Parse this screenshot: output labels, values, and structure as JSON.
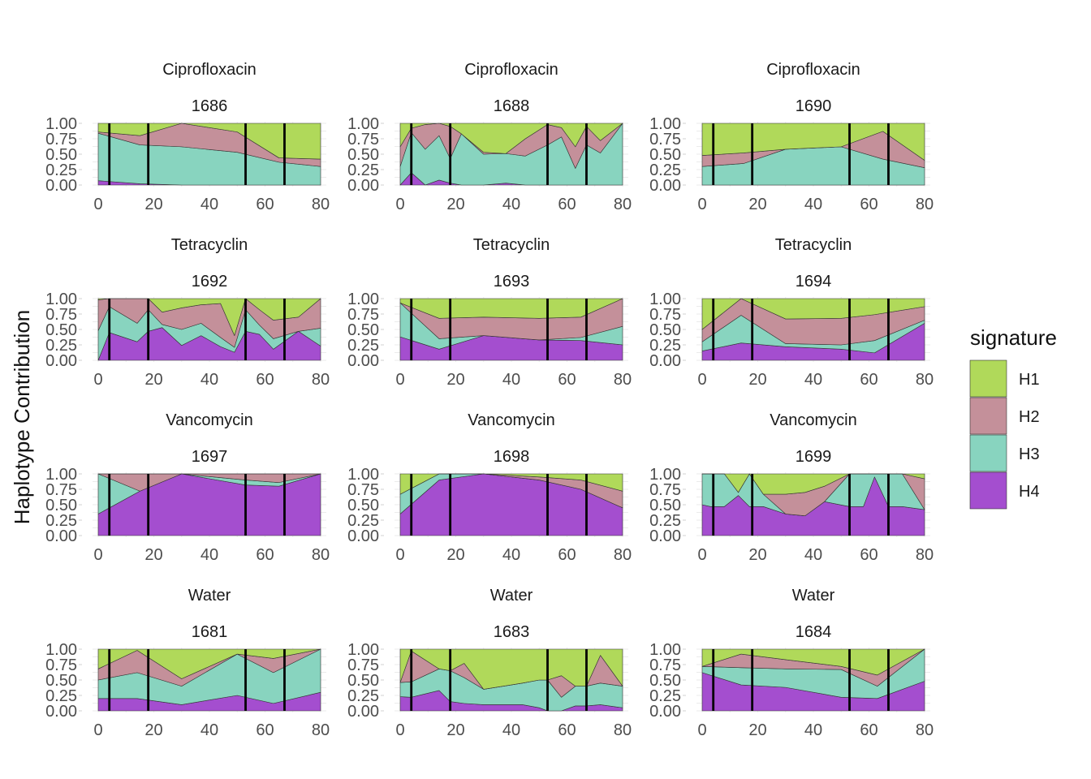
{
  "chart_data": {
    "type": "area",
    "stacked": true,
    "ylabel": "Haplotype Contribution",
    "xlabel": "",
    "xlim": [
      0,
      80
    ],
    "ylim": [
      0,
      1
    ],
    "x_ticks": [
      "0",
      "20",
      "40",
      "60",
      "80"
    ],
    "y_ticks": [
      "0.00",
      "0.25",
      "0.50",
      "0.75",
      "1.00"
    ],
    "grid": true,
    "legend": {
      "title": "signature",
      "position": "right",
      "entries": [
        {
          "name": "H1",
          "color": "#b0d95a"
        },
        {
          "name": "H2",
          "color": "#c4909a"
        },
        {
          "name": "H3",
          "color": "#88d4bf"
        },
        {
          "name": "H4",
          "color": "#a44ecf"
        }
      ]
    },
    "vlines_x": [
      4,
      18,
      53,
      67
    ],
    "panels": [
      {
        "treatment": "Ciprofloxacin",
        "id": "1686",
        "x": [
          0,
          15,
          30,
          50,
          65,
          80
        ],
        "H4": [
          0.07,
          0.02,
          0.0,
          0.0,
          0.0,
          0.0
        ],
        "H3": [
          0.77,
          0.63,
          0.62,
          0.53,
          0.37,
          0.3
        ],
        "H2": [
          0.02,
          0.15,
          0.38,
          0.33,
          0.07,
          0.12
        ]
      },
      {
        "treatment": "Ciprofloxacin",
        "id": "1688",
        "x": [
          0,
          4,
          9,
          14,
          18,
          22,
          30,
          38,
          45,
          53,
          58,
          63,
          67,
          72,
          80
        ],
        "H4": [
          0.0,
          0.2,
          0.0,
          0.08,
          0.03,
          0.0,
          0.0,
          0.03,
          0.0,
          0.0,
          0.0,
          0.0,
          0.0,
          0.0,
          0.0
        ],
        "H3": [
          0.3,
          0.65,
          0.58,
          0.72,
          0.4,
          0.83,
          0.5,
          0.48,
          0.47,
          0.65,
          0.78,
          0.27,
          0.65,
          0.52,
          1.0
        ],
        "H2": [
          0.32,
          0.07,
          0.4,
          0.2,
          0.52,
          0.0,
          0.03,
          0.0,
          0.28,
          0.33,
          0.15,
          0.35,
          0.3,
          0.2,
          0.0
        ]
      },
      {
        "treatment": "Ciprofloxacin",
        "id": "1690",
        "x": [
          0,
          15,
          30,
          50,
          65,
          80
        ],
        "H4": [
          0.0,
          0.0,
          0.0,
          0.0,
          0.0,
          0.0
        ],
        "H3": [
          0.3,
          0.35,
          0.58,
          0.62,
          0.42,
          0.28
        ],
        "H2": [
          0.18,
          0.17,
          0.0,
          0.0,
          0.45,
          0.12
        ]
      },
      {
        "treatment": "Tetracyclin",
        "id": "1692",
        "x": [
          0,
          4,
          14,
          18,
          23,
          30,
          37,
          44,
          49,
          53,
          58,
          63,
          72,
          80
        ],
        "H4": [
          0.0,
          0.45,
          0.3,
          0.47,
          0.53,
          0.24,
          0.4,
          0.22,
          0.13,
          0.47,
          0.42,
          0.18,
          0.47,
          0.23
        ],
        "H3": [
          0.48,
          0.42,
          0.3,
          0.35,
          0.05,
          0.26,
          0.2,
          0.15,
          0.08,
          0.35,
          0.15,
          0.17,
          0.0,
          0.29
        ],
        "H2": [
          0.5,
          0.13,
          0.4,
          0.18,
          0.2,
          0.35,
          0.3,
          0.55,
          0.19,
          0.18,
          0.25,
          0.3,
          0.23,
          0.48
        ]
      },
      {
        "treatment": "Tetracyclin",
        "id": "1693",
        "x": [
          0,
          14,
          30,
          50,
          65,
          80
        ],
        "H4": [
          0.38,
          0.18,
          0.4,
          0.33,
          0.32,
          0.25
        ],
        "H3": [
          0.55,
          0.17,
          0.0,
          0.0,
          0.05,
          0.3
        ],
        "H2": [
          0.0,
          0.33,
          0.3,
          0.35,
          0.33,
          0.45
        ]
      },
      {
        "treatment": "Tetracyclin",
        "id": "1694",
        "x": [
          0,
          14,
          30,
          50,
          62,
          80
        ],
        "H4": [
          0.15,
          0.28,
          0.22,
          0.18,
          0.12,
          0.6
        ],
        "H3": [
          0.15,
          0.45,
          0.05,
          0.07,
          0.2,
          0.05
        ],
        "H2": [
          0.2,
          0.27,
          0.4,
          0.43,
          0.42,
          0.22
        ]
      },
      {
        "treatment": "Vancomycin",
        "id": "1697",
        "x": [
          0,
          15,
          30,
          53,
          65,
          80
        ],
        "H4": [
          0.35,
          0.72,
          1.0,
          0.82,
          0.8,
          1.0
        ],
        "H3": [
          0.65,
          0.0,
          0.0,
          0.08,
          0.06,
          0.0
        ],
        "H2": [
          0.0,
          0.28,
          0.0,
          0.1,
          0.14,
          0.0
        ]
      },
      {
        "treatment": "Vancomycin",
        "id": "1698",
        "x": [
          0,
          14,
          30,
          50,
          65,
          80
        ],
        "H4": [
          0.35,
          0.9,
          1.0,
          0.9,
          0.75,
          0.45
        ],
        "H3": [
          0.32,
          0.1,
          0.0,
          0.0,
          0.0,
          0.0
        ],
        "H2": [
          0.0,
          0.0,
          0.0,
          0.05,
          0.15,
          0.27
        ]
      },
      {
        "treatment": "Vancomycin",
        "id": "1699",
        "x": [
          0,
          3,
          8,
          13,
          17,
          22,
          30,
          37,
          44,
          53,
          58,
          62,
          67,
          72,
          80
        ],
        "H4": [
          0.5,
          0.47,
          0.47,
          0.65,
          0.47,
          0.47,
          0.35,
          0.32,
          0.55,
          0.47,
          0.47,
          0.95,
          0.47,
          0.47,
          0.42
        ],
        "H3": [
          0.5,
          0.53,
          0.53,
          0.05,
          0.53,
          0.2,
          0.0,
          0.0,
          0.0,
          0.53,
          0.53,
          0.05,
          0.53,
          0.53,
          0.0
        ],
        "H2": [
          0.0,
          0.0,
          0.0,
          0.0,
          0.0,
          0.0,
          0.32,
          0.38,
          0.25,
          0.0,
          0.0,
          0.0,
          0.0,
          0.0,
          0.5
        ]
      },
      {
        "treatment": "Water",
        "id": "1681",
        "x": [
          0,
          14,
          30,
          50,
          63,
          80
        ],
        "H4": [
          0.2,
          0.2,
          0.1,
          0.25,
          0.12,
          0.3
        ],
        "H3": [
          0.3,
          0.42,
          0.3,
          0.67,
          0.5,
          0.7
        ],
        "H2": [
          0.18,
          0.36,
          0.12,
          0.0,
          0.23,
          0.0
        ]
      },
      {
        "treatment": "Water",
        "id": "1683",
        "x": [
          0,
          4,
          14,
          18,
          23,
          30,
          44,
          50,
          53,
          58,
          63,
          67,
          72,
          80
        ],
        "H4": [
          0.23,
          0.22,
          0.33,
          0.15,
          0.12,
          0.1,
          0.1,
          0.05,
          0.0,
          0.0,
          0.08,
          0.08,
          0.1,
          0.05
        ],
        "H3": [
          0.23,
          0.25,
          0.35,
          0.5,
          0.42,
          0.25,
          0.35,
          0.45,
          0.5,
          0.22,
          0.32,
          0.32,
          0.35,
          0.35
        ],
        "H2": [
          0.0,
          0.5,
          0.0,
          0.0,
          0.23,
          0.0,
          0.0,
          0.0,
          0.0,
          0.35,
          0.0,
          0.0,
          0.45,
          0.0
        ]
      },
      {
        "treatment": "Water",
        "id": "1684",
        "x": [
          0,
          14,
          30,
          50,
          63,
          80
        ],
        "H4": [
          0.62,
          0.42,
          0.38,
          0.22,
          0.2,
          0.48
        ],
        "H3": [
          0.1,
          0.28,
          0.3,
          0.45,
          0.2,
          0.52
        ],
        "H2": [
          0.0,
          0.22,
          0.15,
          0.05,
          0.18,
          0.0
        ]
      }
    ]
  }
}
